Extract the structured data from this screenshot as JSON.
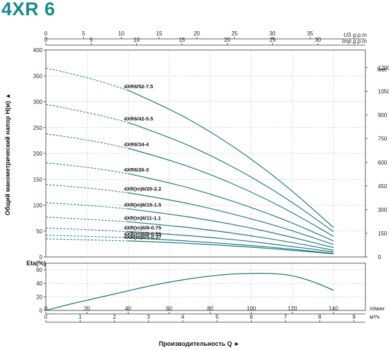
{
  "title": "4XR 6",
  "colors": {
    "accent": "#1a8a8a",
    "curve": "#1f7a80",
    "axis": "#333333"
  },
  "chart_data": [
    {
      "type": "line",
      "name": "head_curves",
      "ylabel": "Общий манометрический напор H(м)",
      "xlim": [
        0,
        140
      ],
      "ylim": [
        0,
        400
      ],
      "left_ticks": [
        "0",
        "50",
        "100",
        "150",
        "200",
        "250",
        "300",
        "350",
        "400"
      ],
      "right_axis": {
        "unit": "feet",
        "ticks": [
          "0",
          "150",
          "300",
          "450",
          "600",
          "750",
          "900",
          "1050",
          "1200"
        ]
      },
      "top_axes": [
        {
          "unit": "US g.p.m",
          "max": 38.1,
          "ticks": [
            "0",
            "5",
            "10",
            "15",
            "20",
            "25",
            "30",
            "35"
          ]
        },
        {
          "unit": "Imp g.p.m",
          "max": 31.7,
          "ticks": [
            "0",
            "5",
            "10",
            "15",
            "20",
            "25",
            "30"
          ]
        }
      ],
      "dashed_until": 40,
      "series": [
        {
          "name": "4XR6/52-7.5",
          "x": [
            0,
            20,
            40,
            60,
            80,
            100,
            120,
            140
          ],
          "y": [
            365,
            348,
            322,
            287,
            243,
            190,
            128,
            57
          ]
        },
        {
          "name": "4XR6/42-5.5",
          "x": [
            0,
            20,
            40,
            60,
            80,
            100,
            120,
            140
          ],
          "y": [
            295,
            280,
            260,
            232,
            197,
            155,
            106,
            49
          ]
        },
        {
          "name": "4XR6/34-4",
          "x": [
            0,
            20,
            40,
            60,
            80,
            100,
            120,
            140
          ],
          "y": [
            238,
            227,
            210,
            188,
            160,
            126,
            86,
            40
          ]
        },
        {
          "name": "4XR6/26-3",
          "x": [
            0,
            20,
            40,
            60,
            80,
            100,
            120,
            140
          ],
          "y": [
            182,
            174,
            161,
            144,
            122,
            96,
            66,
            31
          ]
        },
        {
          "name": "4XR(m)6/20-2.2",
          "x": [
            0,
            20,
            40,
            60,
            80,
            100,
            120,
            140
          ],
          "y": [
            140,
            134,
            124,
            111,
            94,
            74,
            51,
            24
          ]
        },
        {
          "name": "4XR(m)6/15-1.5",
          "x": [
            0,
            20,
            40,
            60,
            80,
            100,
            120,
            140
          ],
          "y": [
            105,
            100,
            93,
            83,
            71,
            56,
            38,
            18
          ]
        },
        {
          "name": "4XR(m)6/11-1.1",
          "x": [
            0,
            20,
            40,
            60,
            80,
            100,
            120,
            140
          ],
          "y": [
            77,
            73,
            68,
            61,
            52,
            41,
            28,
            13
          ]
        },
        {
          "name": "4XR(m)6/8-0.75",
          "x": [
            0,
            20,
            40,
            60,
            80,
            100,
            120,
            140
          ],
          "y": [
            56,
            53,
            49,
            44,
            38,
            30,
            20,
            10
          ]
        },
        {
          "name": "4XR(m)6/6-0.55",
          "x": [
            0,
            20,
            40,
            60,
            80,
            100,
            120,
            140
          ],
          "y": [
            42,
            40,
            37,
            33,
            28,
            22,
            15,
            7
          ]
        },
        {
          "name": "4XR(m)6/5-0.37",
          "x": [
            0,
            20,
            40,
            60,
            80,
            100,
            120,
            140
          ],
          "y": [
            35,
            33,
            31,
            28,
            24,
            19,
            13,
            6
          ]
        }
      ]
    },
    {
      "type": "line",
      "name": "efficiency",
      "ylabel": "Eta(%)",
      "xlim": [
        0,
        140
      ],
      "ylim": [
        0,
        70
      ],
      "ticks": [
        "0",
        "20",
        "40",
        "60"
      ],
      "series": [
        {
          "x": [
            0,
            10,
            20,
            30,
            40,
            50,
            60,
            70,
            80,
            90,
            100,
            110,
            120,
            130,
            140
          ],
          "y": [
            0,
            8,
            15,
            22,
            29,
            36,
            42,
            47,
            51,
            54,
            55,
            55,
            52,
            43,
            30
          ]
        }
      ]
    }
  ],
  "bottom_axes": {
    "lmin": {
      "unit": "л/мин",
      "ticks": [
        "0",
        "20",
        "40",
        "60",
        "80",
        "100",
        "120",
        "140"
      ]
    },
    "m3h": {
      "unit": "м³/ч",
      "max": 8.4,
      "ticks": [
        "0",
        "1",
        "2",
        "3",
        "4",
        "5",
        "6",
        "7",
        "8",
        "9"
      ]
    }
  },
  "xlabel": "Производительность Q"
}
